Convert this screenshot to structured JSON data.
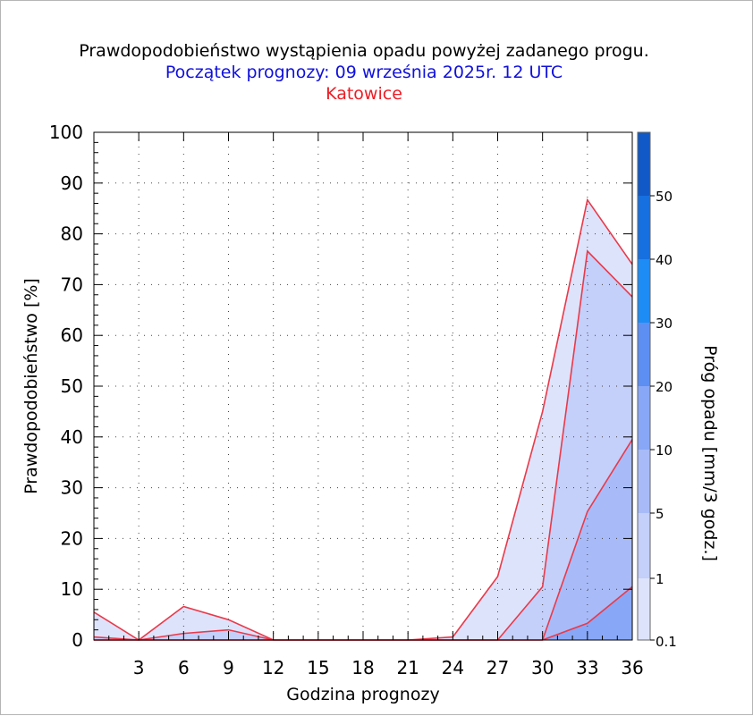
{
  "colors": {
    "title": "#000000",
    "subtitle": "#1010dd",
    "station": "#ee1c24",
    "outline": "#e83a4a",
    "band_0_1": "#dde3fb",
    "band_1": "#c4cffa",
    "band_5": "#a8bbf8",
    "band_10": "#88a7f6",
    "band_20": "#5d8ff2",
    "band_30": "#1e8cf5",
    "band_40": "#1670e0",
    "band_50": "#1059c6",
    "band_top": "#0a46ab"
  },
  "chart_data": {
    "type": "area",
    "title": "Prawdopodobieństwo wystąpienia opadu powyżej zadanego progu.",
    "subtitle": "Początek prognozy: 09 września 2025r. 12 UTC",
    "station": "Katowice",
    "xlabel": "Godzina prognozy",
    "ylabel": "Prawdopodobieństwo [%]",
    "xlim": [
      0,
      36
    ],
    "ylim": [
      0,
      100
    ],
    "x_ticks": [
      3,
      6,
      9,
      12,
      15,
      18,
      21,
      24,
      27,
      30,
      33,
      36
    ],
    "y_ticks": [
      0,
      10,
      20,
      30,
      40,
      50,
      60,
      70,
      80,
      90,
      100
    ],
    "grid": true,
    "x": [
      0,
      3,
      6,
      9,
      12,
      15,
      18,
      21,
      24,
      27,
      30,
      33,
      36
    ],
    "series": [
      {
        "name": "0.1",
        "values": [
          5.5,
          0,
          6.6,
          4,
          0,
          0,
          0,
          0,
          0.6,
          12.5,
          45,
          86.7,
          74
        ]
      },
      {
        "name": "1",
        "values": [
          0.6,
          0,
          1.3,
          2,
          0,
          0,
          0,
          0,
          0,
          0,
          10.5,
          76.6,
          67.6
        ]
      },
      {
        "name": "5",
        "values": [
          0,
          0,
          0,
          0,
          0,
          0,
          0,
          0,
          0,
          0,
          0,
          25.3,
          39.5
        ]
      },
      {
        "name": "10",
        "values": [
          0,
          0,
          0,
          0,
          0,
          0,
          0,
          0,
          0,
          0,
          0,
          3.3,
          10.5
        ]
      }
    ],
    "colorbar": {
      "label": "Próg opadu [mm/3 godz.]",
      "tick_labels": [
        "0.1",
        "1",
        "5",
        "10",
        "20",
        "30",
        "40",
        "50"
      ]
    }
  }
}
